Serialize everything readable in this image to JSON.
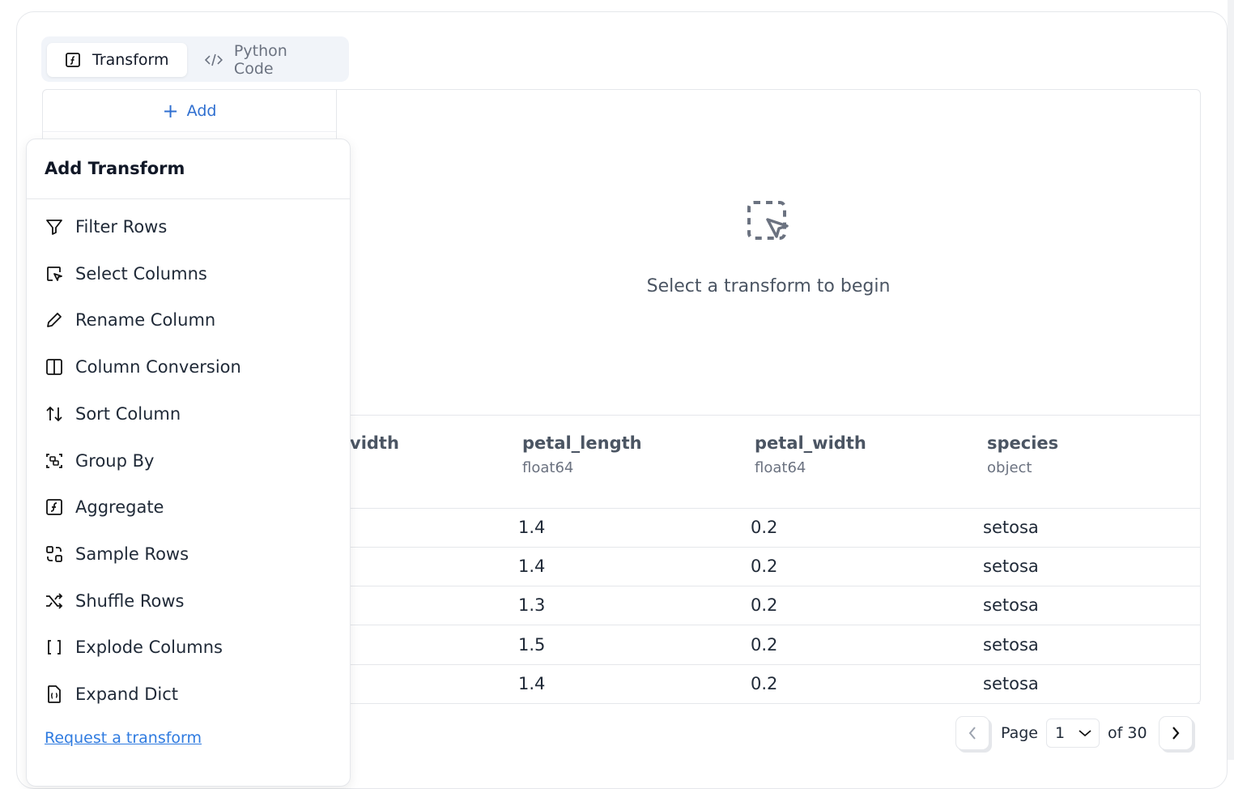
{
  "tabs": [
    {
      "label": "Transform",
      "icon": "function-icon"
    },
    {
      "label": "Python Code",
      "icon": "code-icon"
    }
  ],
  "add_label": "Add",
  "empty_state": "Select a transform to begin",
  "table": {
    "columns": [
      {
        "name": "vidth",
        "type": ""
      },
      {
        "name": "petal_length",
        "type": "float64"
      },
      {
        "name": "petal_width",
        "type": "float64"
      },
      {
        "name": "species",
        "type": "object"
      }
    ],
    "rows": [
      [
        "1.4",
        "0.2",
        "setosa"
      ],
      [
        "1.4",
        "0.2",
        "setosa"
      ],
      [
        "1.3",
        "0.2",
        "setosa"
      ],
      [
        "1.5",
        "0.2",
        "setosa"
      ],
      [
        "1.4",
        "0.2",
        "setosa"
      ]
    ]
  },
  "menu": {
    "title": "Add Transform",
    "items": [
      "Filter Rows",
      "Select Columns",
      "Rename Column",
      "Column Conversion",
      "Sort Column",
      "Group By",
      "Aggregate",
      "Sample Rows",
      "Shuffle Rows",
      "Explode Columns",
      "Expand Dict"
    ],
    "request_link": "Request a transform"
  },
  "pager": {
    "page_label": "Page",
    "page": "1",
    "of_label": "of 30"
  },
  "colors": {
    "accent": "#2f6fd0",
    "link": "#2f7be0"
  }
}
